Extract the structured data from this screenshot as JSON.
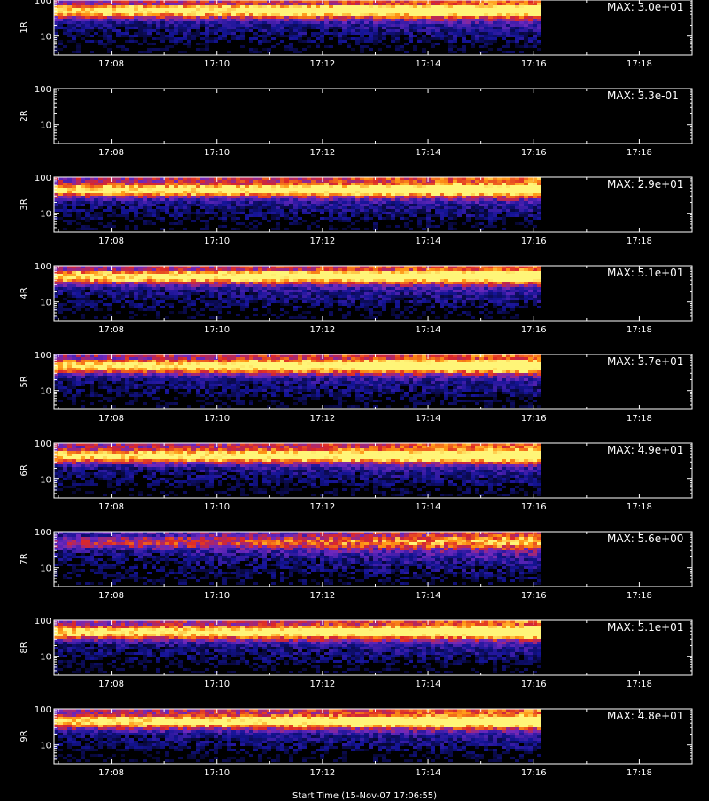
{
  "footer": "Start Time (15-Nov-07 17:06:55)",
  "chart_data": [
    {
      "type": "heatmap",
      "channel": "1R",
      "max_label": "MAX: 3.0e+01",
      "max": 30,
      "xlim": [
        "17:06:55",
        "17:19:00"
      ],
      "data_end": "17:16",
      "ylim": [
        3,
        100
      ],
      "yscale": "log",
      "yticks": [
        "10",
        "100"
      ],
      "xticks": [
        "17:08",
        "17:10",
        "17:12",
        "17:14",
        "17:16",
        "17:18"
      ],
      "empty": false
    },
    {
      "type": "heatmap",
      "channel": "2R",
      "max_label": "MAX: 3.3e-01",
      "max": 0.33,
      "xlim": [
        "17:06:55",
        "17:19:00"
      ],
      "data_end": "17:16",
      "ylim": [
        3,
        100
      ],
      "yscale": "log",
      "yticks": [
        "10",
        "100"
      ],
      "xticks": [
        "17:08",
        "17:10",
        "17:12",
        "17:14",
        "17:16",
        "17:18"
      ],
      "empty": true
    },
    {
      "type": "heatmap",
      "channel": "3R",
      "max_label": "MAX: 2.9e+01",
      "max": 29,
      "xlim": [
        "17:06:55",
        "17:19:00"
      ],
      "data_end": "17:16",
      "ylim": [
        3,
        100
      ],
      "yscale": "log",
      "yticks": [
        "10",
        "100"
      ],
      "xticks": [
        "17:08",
        "17:10",
        "17:12",
        "17:14",
        "17:16",
        "17:18"
      ],
      "empty": false
    },
    {
      "type": "heatmap",
      "channel": "4R",
      "max_label": "MAX: 5.1e+01",
      "max": 51,
      "xlim": [
        "17:06:55",
        "17:19:00"
      ],
      "data_end": "17:16",
      "ylim": [
        3,
        100
      ],
      "yscale": "log",
      "yticks": [
        "10",
        "100"
      ],
      "xticks": [
        "17:08",
        "17:10",
        "17:12",
        "17:14",
        "17:16",
        "17:18"
      ],
      "empty": false
    },
    {
      "type": "heatmap",
      "channel": "5R",
      "max_label": "MAX: 3.7e+01",
      "max": 37,
      "xlim": [
        "17:06:55",
        "17:19:00"
      ],
      "data_end": "17:16",
      "ylim": [
        3,
        100
      ],
      "yscale": "log",
      "yticks": [
        "10",
        "100"
      ],
      "xticks": [
        "17:08",
        "17:10",
        "17:12",
        "17:14",
        "17:16",
        "17:18"
      ],
      "empty": false
    },
    {
      "type": "heatmap",
      "channel": "6R",
      "max_label": "MAX: 4.9e+01",
      "max": 49,
      "xlim": [
        "17:06:55",
        "17:19:00"
      ],
      "data_end": "17:16",
      "ylim": [
        3,
        100
      ],
      "yscale": "log",
      "yticks": [
        "10",
        "100"
      ],
      "xticks": [
        "17:08",
        "17:10",
        "17:12",
        "17:14",
        "17:16",
        "17:18"
      ],
      "empty": false
    },
    {
      "type": "heatmap",
      "channel": "7R",
      "max_label": "MAX: 5.6e+00",
      "max": 5.6,
      "xlim": [
        "17:06:55",
        "17:19:00"
      ],
      "data_end": "17:16",
      "ylim": [
        3,
        100
      ],
      "yscale": "log",
      "yticks": [
        "10",
        "100"
      ],
      "xticks": [
        "17:08",
        "17:10",
        "17:12",
        "17:14",
        "17:16",
        "17:18"
      ],
      "empty": false
    },
    {
      "type": "heatmap",
      "channel": "8R",
      "max_label": "MAX: 5.1e+01",
      "max": 51,
      "xlim": [
        "17:06:55",
        "17:19:00"
      ],
      "data_end": "17:16",
      "ylim": [
        3,
        100
      ],
      "yscale": "log",
      "yticks": [
        "10",
        "100"
      ],
      "xticks": [
        "17:08",
        "17:10",
        "17:12",
        "17:14",
        "17:16",
        "17:18"
      ],
      "empty": false
    },
    {
      "type": "heatmap",
      "channel": "9R",
      "max_label": "MAX: 4.8e+01",
      "max": 48,
      "xlim": [
        "17:06:55",
        "17:19:00"
      ],
      "data_end": "17:16",
      "ylim": [
        3,
        100
      ],
      "yscale": "log",
      "yticks": [
        "10",
        "100"
      ],
      "xticks": [
        "17:08",
        "17:10",
        "17:12",
        "17:14",
        "17:16",
        "17:18"
      ],
      "empty": false
    }
  ]
}
